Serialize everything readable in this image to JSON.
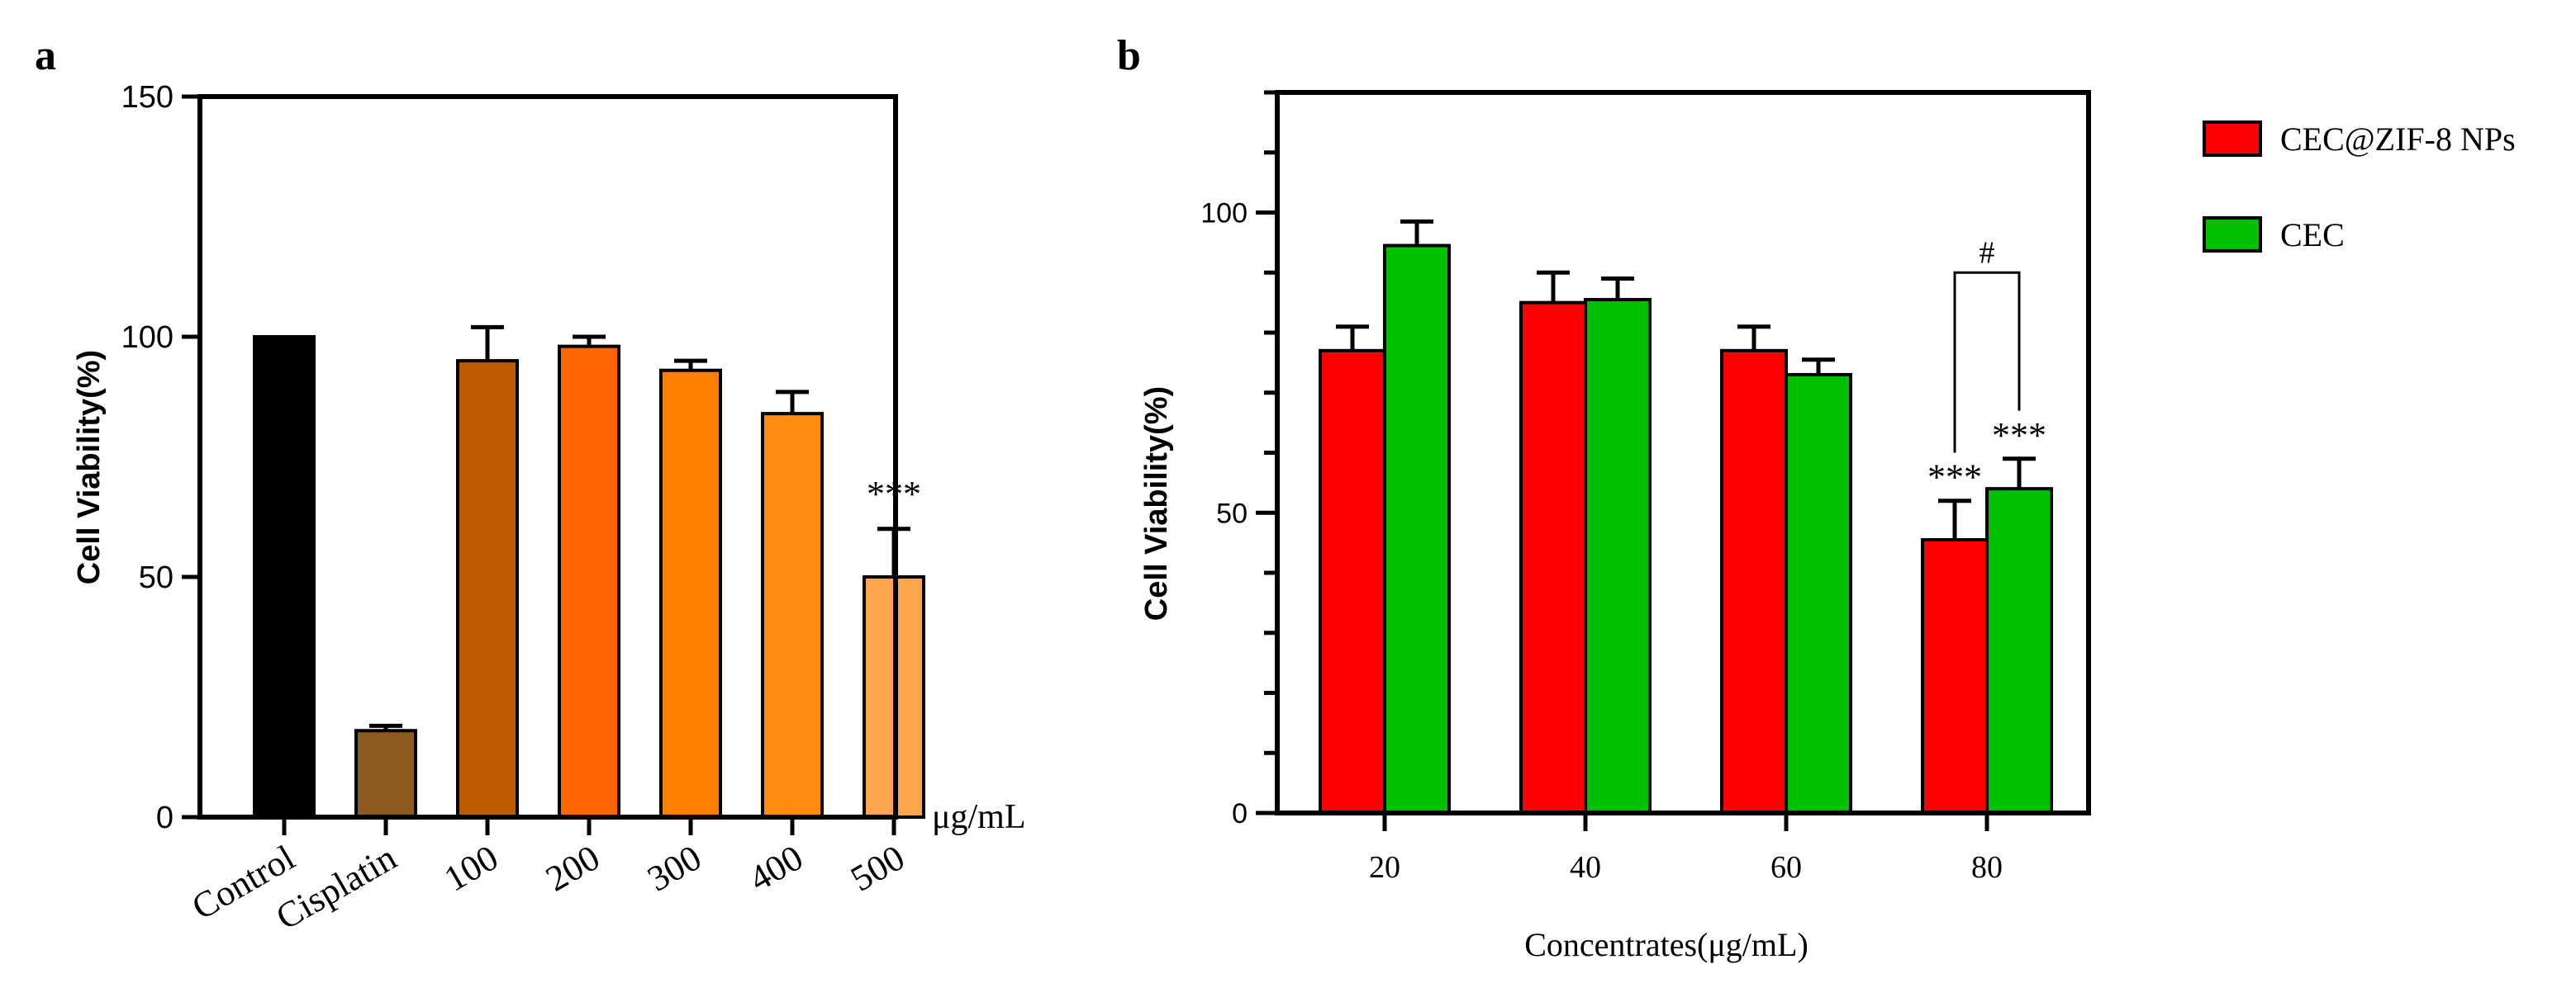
{
  "chart_data": [
    {
      "panel": "a",
      "type": "bar",
      "categories": [
        "Control",
        "Cisplatin",
        "100",
        "200",
        "300",
        "400",
        "500"
      ],
      "values": [
        100,
        18,
        95,
        98,
        93,
        84,
        50
      ],
      "errors": [
        0,
        1,
        7,
        2,
        2,
        4.5,
        10
      ],
      "colors": [
        "#000000",
        "#8b5a1e",
        "#c05a00",
        "#ff6600",
        "#ff7f00",
        "#ff8c10",
        "#ffa64d"
      ],
      "significance": [
        {
          "category": "500",
          "label": "***"
        }
      ],
      "title": "",
      "xlabel": "",
      "unit_label": "μg/mL",
      "ylabel": "Cell Viability(%)",
      "ylim": [
        0,
        150
      ],
      "yticks": [
        "0",
        "50",
        "100",
        "150"
      ],
      "y_minor_per_major": 0
    },
    {
      "panel": "b",
      "type": "bar",
      "categories": [
        "20",
        "40",
        "60",
        "80"
      ],
      "series": [
        {
          "name": "CEC@ZIF-8 NPs",
          "color": "#ff0000",
          "values": [
            77,
            85,
            77,
            45.5
          ],
          "errors": [
            4,
            5,
            4,
            6.5
          ]
        },
        {
          "name": "CEC",
          "color": "#00c000",
          "values": [
            94.5,
            85.5,
            73,
            54
          ],
          "errors": [
            4,
            3.5,
            2.5,
            5
          ]
        }
      ],
      "significance": [
        {
          "category": "80",
          "series": "CEC@ZIF-8 NPs",
          "label": "***"
        },
        {
          "category": "80",
          "series": "CEC",
          "label": "***"
        }
      ],
      "bracket": {
        "category": "80",
        "label": "#"
      },
      "title": "",
      "xlabel": "Concentrates(μg/mL)",
      "ylabel": "Cell Viability(%)",
      "ylim": [
        0,
        120
      ],
      "yticks": [
        "0",
        "50",
        "100"
      ],
      "y_minor_per_major": 5
    }
  ]
}
